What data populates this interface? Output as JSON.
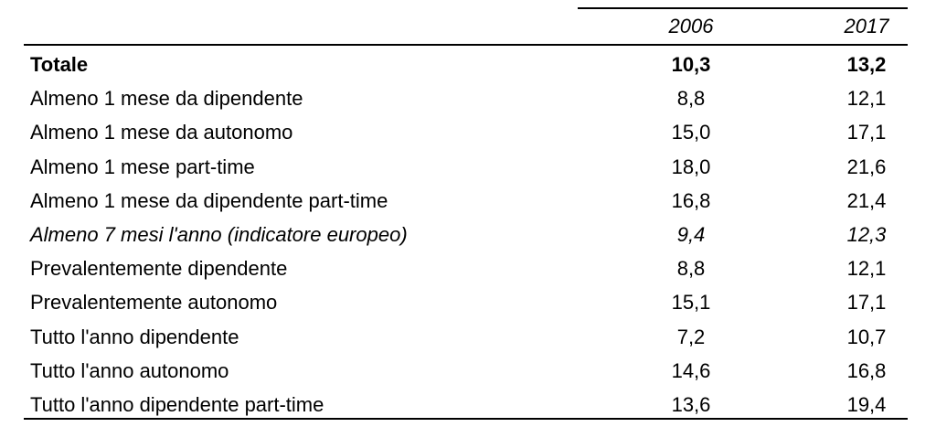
{
  "table": {
    "columns": [
      "2006",
      "2017"
    ],
    "rows": [
      {
        "label": "Totale",
        "v2006": "10,3",
        "v2017": "13,2",
        "style": "bold"
      },
      {
        "label": "Almeno 1 mese da dipendente",
        "v2006": "8,8",
        "v2017": "12,1",
        "style": "normal"
      },
      {
        "label": "Almeno 1 mese da autonomo",
        "v2006": "15,0",
        "v2017": "17,1",
        "style": "normal"
      },
      {
        "label": "Almeno 1 mese part-time",
        "v2006": "18,0",
        "v2017": "21,6",
        "style": "normal"
      },
      {
        "label": "Almeno 1 mese da dipendente part-time",
        "v2006": "16,8",
        "v2017": "21,4",
        "style": "normal"
      },
      {
        "label": "Almeno 7 mesi l'anno (indicatore europeo)",
        "v2006": "9,4",
        "v2017": "12,3",
        "style": "italic"
      },
      {
        "label": "Prevalentemente dipendente",
        "v2006": "8,8",
        "v2017": "12,1",
        "style": "normal"
      },
      {
        "label": "Prevalentemente autonomo",
        "v2006": "15,1",
        "v2017": "17,1",
        "style": "normal"
      },
      {
        "label": "Tutto l'anno dipendente",
        "v2006": "7,2",
        "v2017": "10,7",
        "style": "normal"
      },
      {
        "label": "Tutto l'anno autonomo",
        "v2006": "14,6",
        "v2017": "16,8",
        "style": "normal"
      },
      {
        "label": "Tutto l'anno dipendente part-time",
        "v2006": "13,6",
        "v2017": "19,4",
        "style": "normal"
      }
    ]
  }
}
